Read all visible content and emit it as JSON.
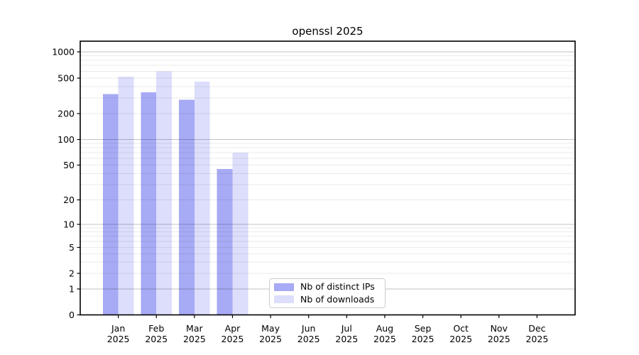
{
  "title": "openssl 2025",
  "chart_data": {
    "type": "bar",
    "title": "openssl 2025",
    "categories": [
      "Jan",
      "Feb",
      "Mar",
      "Apr",
      "May",
      "Jun",
      "Jul",
      "Aug",
      "Sep",
      "Oct",
      "Nov",
      "Dec"
    ],
    "category_year": "2025",
    "series": [
      {
        "name": "Nb of distinct IPs",
        "color": "#a7aaf4",
        "values": [
          330,
          345,
          285,
          45,
          null,
          null,
          null,
          null,
          null,
          null,
          null,
          null
        ]
      },
      {
        "name": "Nb of downloads",
        "color": "#dcdefb",
        "values": [
          520,
          600,
          455,
          70,
          null,
          null,
          null,
          null,
          null,
          null,
          null,
          null
        ]
      }
    ],
    "yscale": "symlog",
    "y_ticks": [
      0,
      1,
      2,
      5,
      10,
      20,
      50,
      100,
      200,
      500,
      1000
    ],
    "ylim": [
      0,
      1300
    ],
    "xlabel": "",
    "ylabel": "",
    "grid": true,
    "legend_position": "lower center"
  }
}
